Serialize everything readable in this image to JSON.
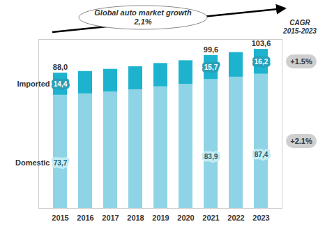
{
  "chart_data": {
    "type": "bar",
    "stacked": true,
    "data_labels": true,
    "tick_labels": "x",
    "categories": [
      "2015",
      "2016",
      "2017",
      "2018",
      "2019",
      "2020",
      "2021",
      "2022",
      "2023"
    ],
    "ylim": [
      0,
      110
    ],
    "series": [
      {
        "name": "Domestic",
        "color": "#8fd4e6",
        "values": [
          73.7,
          74.6,
          75.8,
          77.3,
          79.2,
          80.8,
          83.9,
          85.5,
          87.4
        ],
        "value_labels": [
          "73,7",
          null,
          null,
          null,
          null,
          null,
          "83,9",
          null,
          "87,4"
        ],
        "cagr": "+2.1%"
      },
      {
        "name": "Imported",
        "color": "#1db3cf",
        "values": [
          14.4,
          14.6,
          14.8,
          15.0,
          15.2,
          15.4,
          15.7,
          16.0,
          16.2
        ],
        "value_labels": [
          "14,4",
          null,
          null,
          null,
          null,
          null,
          "15,7",
          null,
          "16,2"
        ],
        "cagr": "+1.5%"
      }
    ],
    "totals": [
      88.0,
      null,
      null,
      null,
      null,
      null,
      99.6,
      null,
      103.6
    ],
    "total_labels": [
      "88,0",
      null,
      null,
      null,
      null,
      null,
      "99,6",
      null,
      "103,6"
    ],
    "cagr_title": "CAGR 2015-2023",
    "market_growth": {
      "label": "Global auto market growth",
      "value_label": "2,1%"
    }
  }
}
